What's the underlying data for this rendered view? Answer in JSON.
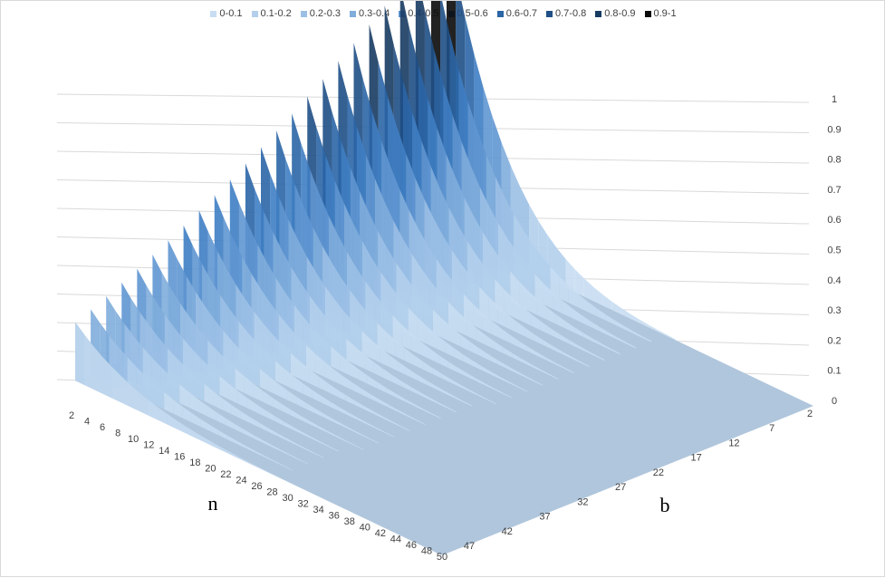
{
  "chart_data": {
    "type": "surface",
    "title": "",
    "legend": {
      "position": "top",
      "entries": [
        {
          "label": "0-0.1",
          "color": "#c8ddf2"
        },
        {
          "label": "0.1-0.2",
          "color": "#b3cfec"
        },
        {
          "label": "0.2-0.3",
          "color": "#9cc0e5"
        },
        {
          "label": "0.3-0.4",
          "color": "#80addc"
        },
        {
          "label": "0.4-0.5",
          "color": "#5f96d1"
        },
        {
          "label": "0.5-0.6",
          "color": "#3f7ec3"
        },
        {
          "label": "0.6-0.7",
          "color": "#2b66a7"
        },
        {
          "label": "0.7-0.8",
          "color": "#1f4f86"
        },
        {
          "label": "0.8-0.9",
          "color": "#173b63"
        },
        {
          "label": "0.9-1",
          "color": "#0a0a0a"
        }
      ]
    },
    "n_axis": {
      "label": "n",
      "ticks": [
        "2",
        "4",
        "6",
        "8",
        "10",
        "12",
        "14",
        "16",
        "18",
        "20",
        "22",
        "24",
        "26",
        "28",
        "30",
        "32",
        "34",
        "36",
        "38",
        "40",
        "42",
        "44",
        "46",
        "48",
        "50"
      ]
    },
    "b_axis": {
      "label": "b",
      "ticks": [
        "2",
        "7",
        "12",
        "17",
        "22",
        "27",
        "32",
        "37",
        "42",
        "47"
      ]
    },
    "z_axis": {
      "ticks": [
        "0",
        "0.1",
        "0.2",
        "0.3",
        "0.4",
        "0.5",
        "0.6",
        "0.7",
        "0.8",
        "0.9",
        "1"
      ],
      "range": [
        0,
        1
      ]
    },
    "gridlines": true
  }
}
